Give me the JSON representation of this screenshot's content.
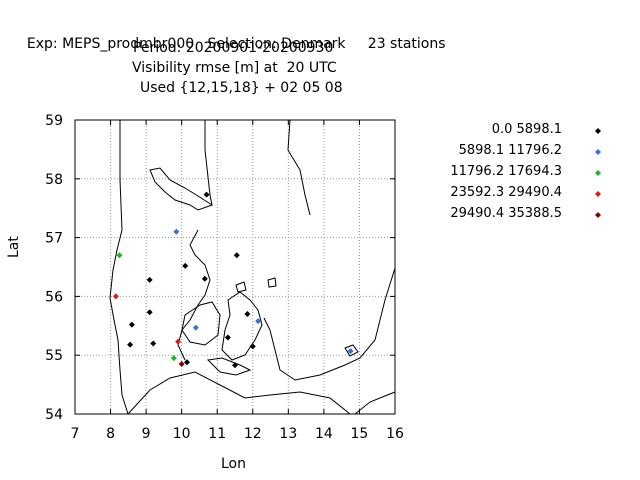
{
  "header": {
    "line1_exp": "Exp: MEPS_prodmbr000",
    "line1_selection": "Selection: Denmark",
    "line1_stations": "23 stations",
    "line2": "Period: 20200901-20200930",
    "line3": "Visibility rmse [m] at  20 UTC",
    "line4": "Used {12,15,18} + 02 05 08"
  },
  "chart_data": {
    "type": "scatter",
    "xlabel": "Lon",
    "ylabel": "Lat",
    "xlim": [
      7,
      16
    ],
    "ylim": [
      54,
      59
    ],
    "xticks": [
      "7",
      "8",
      "9",
      "10",
      "11",
      "12",
      "13",
      "14",
      "15",
      "16"
    ],
    "yticks": [
      "54",
      "55",
      "56",
      "57",
      "58",
      "59"
    ],
    "grid": true,
    "legend_position": "right",
    "classes": [
      {
        "label": "0.0 5898.1",
        "color": "#000000"
      },
      {
        "label": "5898.1 11796.2",
        "color": "#3a6fd8"
      },
      {
        "label": "11796.2 17694.3",
        "color": "#1fb51f"
      },
      {
        "label": "23592.3 29490.4",
        "color": "#e01818"
      },
      {
        "label": "29490.4 35388.5",
        "color": "#8b0000"
      }
    ],
    "points": [
      {
        "lon": 10.7,
        "lat": 57.73,
        "class": 0
      },
      {
        "lon": 11.55,
        "lat": 56.7,
        "class": 0
      },
      {
        "lon": 10.1,
        "lat": 56.52,
        "class": 0
      },
      {
        "lon": 10.65,
        "lat": 56.3,
        "class": 0
      },
      {
        "lon": 9.1,
        "lat": 56.28,
        "class": 0
      },
      {
        "lon": 9.1,
        "lat": 55.73,
        "class": 0
      },
      {
        "lon": 8.6,
        "lat": 55.52,
        "class": 0
      },
      {
        "lon": 8.55,
        "lat": 55.18,
        "class": 0
      },
      {
        "lon": 9.2,
        "lat": 55.2,
        "class": 0
      },
      {
        "lon": 10.15,
        "lat": 54.88,
        "class": 0
      },
      {
        "lon": 11.5,
        "lat": 54.83,
        "class": 0
      },
      {
        "lon": 11.3,
        "lat": 55.3,
        "class": 0
      },
      {
        "lon": 11.85,
        "lat": 55.7,
        "class": 0
      },
      {
        "lon": 12.0,
        "lat": 55.15,
        "class": 0
      },
      {
        "lon": 9.85,
        "lat": 57.1,
        "class": 1
      },
      {
        "lon": 10.4,
        "lat": 55.47,
        "class": 1
      },
      {
        "lon": 12.15,
        "lat": 55.58,
        "class": 1
      },
      {
        "lon": 14.75,
        "lat": 55.07,
        "class": 1
      },
      {
        "lon": 8.25,
        "lat": 56.7,
        "class": 2
      },
      {
        "lon": 9.78,
        "lat": 54.95,
        "class": 2
      },
      {
        "lon": 8.15,
        "lat": 56.0,
        "class": 3
      },
      {
        "lon": 9.9,
        "lat": 55.23,
        "class": 3
      },
      {
        "lon": 10.0,
        "lat": 54.85,
        "class": 4
      }
    ]
  }
}
